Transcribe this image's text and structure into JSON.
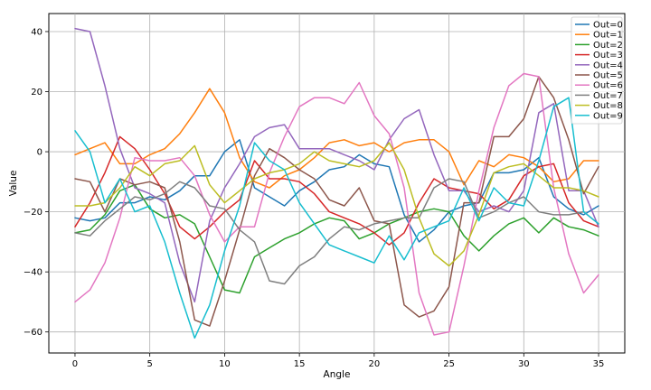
{
  "chart_data": {
    "type": "line",
    "title": "",
    "xlabel": "Angle",
    "ylabel": "Value",
    "xlim": [
      -1.75,
      36.75
    ],
    "ylim": [
      -67,
      46
    ],
    "xticks": [
      0,
      5,
      10,
      15,
      20,
      25,
      30,
      35
    ],
    "yticks": [
      -60,
      -40,
      -20,
      0,
      20,
      40
    ],
    "grid": true,
    "legend_position": "top-right",
    "x": [
      0,
      1,
      2,
      3,
      4,
      5,
      6,
      7,
      8,
      9,
      10,
      11,
      12,
      13,
      14,
      15,
      16,
      17,
      18,
      19,
      20,
      21,
      22,
      23,
      24,
      25,
      26,
      27,
      28,
      29,
      30,
      31,
      32,
      33,
      34,
      35
    ],
    "series": [
      {
        "name": "Out=0",
        "color": "#1f77b4",
        "values": [
          -22,
          -23,
          -22,
          -17,
          -17,
          -15,
          -16,
          -13,
          -8,
          -8,
          0,
          4,
          -12,
          -15,
          -18,
          -13,
          -10,
          -6,
          -5,
          -1,
          -4,
          -5,
          -21,
          -30,
          -26,
          -20,
          -18,
          -17,
          -7,
          -7,
          -6,
          -2,
          -15,
          -19,
          -21,
          -18
        ]
      },
      {
        "name": "Out=1",
        "color": "#ff7f0e",
        "values": [
          -1,
          1,
          3,
          -4,
          -4,
          -1,
          1,
          6,
          13,
          21,
          13,
          -2,
          -10,
          -12,
          -8,
          -6,
          -2,
          3,
          4,
          2,
          3,
          0,
          3,
          4,
          4,
          0,
          -11,
          -3,
          -5,
          -1,
          -2,
          -5,
          -10,
          -9,
          -3,
          -3
        ]
      },
      {
        "name": "Out=2",
        "color": "#2ca02c",
        "values": [
          -27,
          -26,
          -21,
          -13,
          -11,
          -19,
          -22,
          -21,
          -24,
          -35,
          -46,
          -47,
          -35,
          -32,
          -29,
          -27,
          -24,
          -22,
          -23,
          -29,
          -27,
          -24,
          -22,
          -20,
          -19,
          -20,
          -28,
          -33,
          -28,
          -24,
          -22,
          -27,
          -22,
          -25,
          -26,
          -28
        ]
      },
      {
        "name": "Out=3",
        "color": "#d62728",
        "values": [
          -25,
          -17,
          -7,
          5,
          1,
          -6,
          -14,
          -25,
          -29,
          -25,
          -20,
          -16,
          -3,
          -9,
          -9,
          -10,
          -14,
          -20,
          -22,
          -24,
          -27,
          -31,
          -27,
          -17,
          -9,
          -12,
          -13,
          -14,
          -19,
          -16,
          -8,
          -5,
          -4,
          -17,
          -23,
          -25
        ]
      },
      {
        "name": "Out=4",
        "color": "#9467bd",
        "values": [
          41,
          40,
          22,
          1,
          -12,
          -14,
          -17,
          -37,
          -50,
          -23,
          -12,
          -4,
          5,
          8,
          9,
          1,
          1,
          1,
          -1,
          -3,
          -6,
          4,
          11,
          14,
          -1,
          -13,
          -13,
          -20,
          -18,
          -20,
          -13,
          13,
          16,
          -13,
          -13,
          -25
        ]
      },
      {
        "name": "Out=5",
        "color": "#8c564b",
        "values": [
          -9,
          -10,
          -20,
          -9,
          -11,
          -10,
          -12,
          -30,
          -56,
          -58,
          -43,
          -26,
          -8,
          1,
          -2,
          -6,
          -9,
          -16,
          -18,
          -12,
          -23,
          -24,
          -51,
          -55,
          -53,
          -45,
          -17,
          -17,
          5,
          5,
          11,
          25,
          18,
          4,
          -14,
          -5
        ]
      },
      {
        "name": "Out=6",
        "color": "#e377c2",
        "values": [
          -50,
          -46,
          -37,
          -22,
          -2,
          -3,
          -3,
          -2,
          -8,
          -21,
          -30,
          -25,
          -25,
          -7,
          5,
          15,
          18,
          18,
          16,
          23,
          12,
          6,
          -12,
          -47,
          -61,
          -60,
          -38,
          -13,
          8,
          22,
          26,
          25,
          -12,
          -34,
          -47,
          -41
        ]
      },
      {
        "name": "Out=7",
        "color": "#7f7f7f",
        "values": [
          -27,
          -28,
          -23,
          -19,
          -15,
          -16,
          -14,
          -10,
          -12,
          -18,
          -19,
          -26,
          -30,
          -43,
          -44,
          -38,
          -35,
          -29,
          -25,
          -26,
          -24,
          -23,
          -22,
          -22,
          -12,
          -9,
          -10,
          -22,
          -20,
          -17,
          -15,
          -20,
          -21,
          -21,
          -20,
          -24
        ]
      },
      {
        "name": "Out=8",
        "color": "#bcbd22",
        "values": [
          -18,
          -18,
          -17,
          -12,
          -5,
          -8,
          -4,
          -3,
          2,
          -11,
          -17,
          -13,
          -9,
          -7,
          -6,
          -4,
          0,
          -3,
          -4,
          -5,
          -3,
          3,
          -6,
          -22,
          -34,
          -38,
          -33,
          -21,
          -7,
          -5,
          -4,
          -8,
          -12,
          -12,
          -13,
          -15
        ]
      },
      {
        "name": "Out=9",
        "color": "#17becf",
        "values": [
          7,
          0,
          -17,
          -9,
          -20,
          -18,
          -30,
          -47,
          -62,
          -51,
          -33,
          -18,
          3,
          -3,
          -6,
          -17,
          -24,
          -31,
          -33,
          -35,
          -37,
          -28,
          -36,
          -27,
          -25,
          -23,
          -12,
          -23,
          -12,
          -17,
          -18,
          -3,
          15,
          18,
          -20,
          -24
        ]
      }
    ]
  }
}
